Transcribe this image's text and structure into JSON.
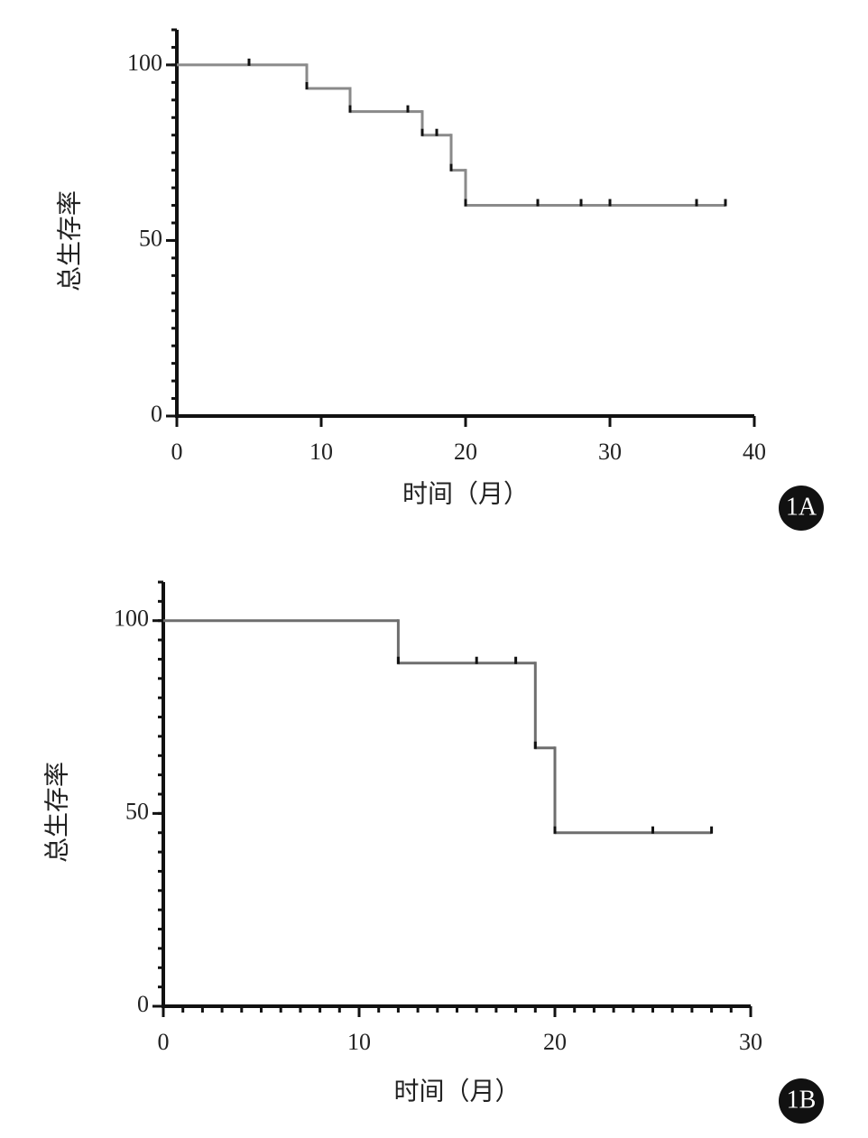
{
  "chart_data": [
    {
      "type": "line",
      "step": "post",
      "panel_label": "1A",
      "y_label": "总生存率",
      "x_label": "时间（月）",
      "x": [
        0,
        9,
        12,
        17,
        19,
        20,
        38
      ],
      "values": [
        100,
        93.3,
        86.7,
        80,
        70,
        60,
        60
      ],
      "color": "#8a8a8a",
      "censor_x": [
        5,
        9,
        12,
        16,
        17,
        18,
        19,
        20,
        25,
        28,
        30,
        36,
        38
      ],
      "censor_values": [
        100,
        93.3,
        86.7,
        86.7,
        80,
        80,
        70,
        60,
        60,
        60,
        60,
        60,
        60
      ],
      "xlim": [
        0,
        40
      ],
      "xticks": [
        0,
        10,
        20,
        30,
        40
      ],
      "ylim": [
        0,
        110
      ],
      "yticks": [
        0,
        50,
        100
      ],
      "y_minor_step": 5
    },
    {
      "type": "line",
      "step": "post",
      "panel_label": "1B",
      "y_label": "总生存率",
      "x_label": "时间（月）",
      "x": [
        0,
        12,
        19,
        20,
        28
      ],
      "values": [
        100,
        89,
        67,
        45,
        45
      ],
      "color": "#6e6e6e",
      "censor_x": [
        12,
        16,
        18,
        19,
        20,
        25,
        28
      ],
      "censor_values": [
        89,
        89,
        89,
        67,
        45,
        45,
        45
      ],
      "xlim": [
        0,
        30
      ],
      "xticks": [
        0,
        10,
        20,
        30
      ],
      "ylim": [
        0,
        110
      ],
      "yticks": [
        0,
        50,
        100
      ],
      "y_minor_step": 5,
      "x_minor_step": 1
    }
  ]
}
